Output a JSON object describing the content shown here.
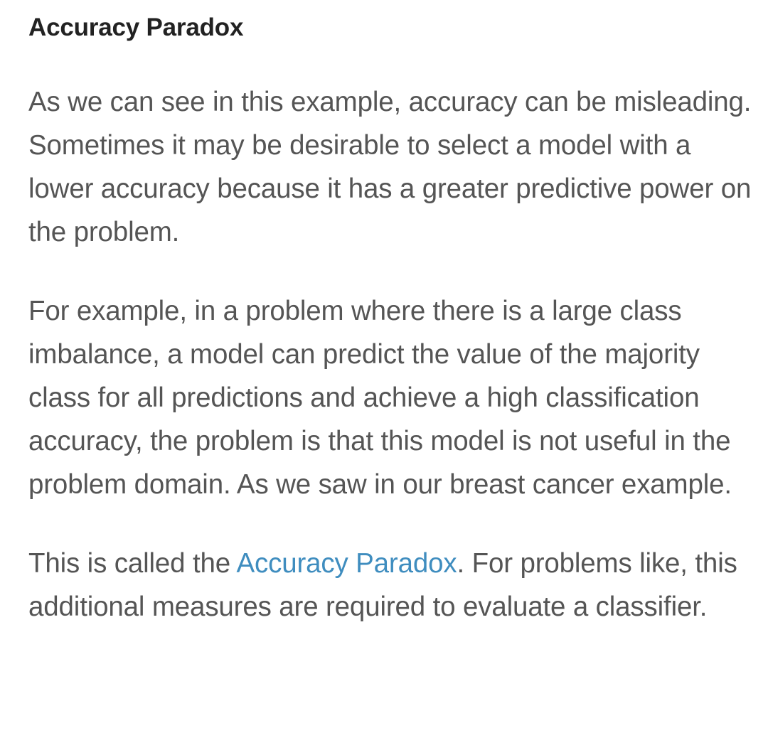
{
  "article": {
    "heading": "Accuracy Paradox",
    "paragraph1": "As we can see in this example, accuracy can be misleading. Sometimes it may be desirable to select a model with a lower accuracy because it has a greater predictive power on the problem.",
    "paragraph2": "For example, in a problem where there is a large class imbalance, a model can predict the value of the majority class for all predictions and achieve a high classification accuracy, the problem is that this model is not useful in the problem domain. As we saw in our breast cancer example.",
    "paragraph3": {
      "before_link": "This is called the ",
      "link_text": "Accuracy Paradox",
      "after_link": ". For problems like, this additional measures are required to evaluate a classifier."
    }
  },
  "colors": {
    "text": "#555555",
    "heading": "#222222",
    "link": "#3f8dbf",
    "background": "#ffffff"
  }
}
